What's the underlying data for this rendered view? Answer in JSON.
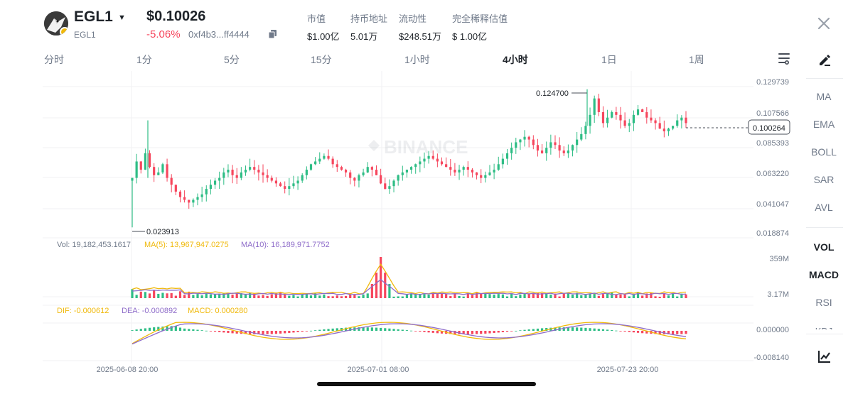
{
  "header": {
    "symbol": "EGL1",
    "symbol_sub": "EGL1",
    "price": "$0.10026",
    "change": "-5.06%",
    "address": "0xf4b3...ff4444",
    "stats": [
      {
        "label": "市值",
        "value": "$1.00亿"
      },
      {
        "label": "持币地址",
        "value": "5.01万"
      },
      {
        "label": "流动性",
        "value": "$248.51万"
      },
      {
        "label": "完全稀释估值",
        "value": "$ 1.00亿"
      }
    ]
  },
  "timeframes": [
    {
      "label": "分时"
    },
    {
      "label": "1分"
    },
    {
      "label": "5分"
    },
    {
      "label": "15分"
    },
    {
      "label": "1小时"
    },
    {
      "label": "4小时"
    },
    {
      "label": "1日"
    },
    {
      "label": "1周"
    }
  ],
  "active_timeframe": "4小时",
  "side_indicators": [
    {
      "label": "MA"
    },
    {
      "label": "EMA"
    },
    {
      "label": "BOLL"
    },
    {
      "label": "SAR"
    },
    {
      "label": "AVL"
    },
    {
      "label": "VOL"
    },
    {
      "label": "MACD"
    },
    {
      "label": "RSI"
    },
    {
      "label": "KDJ"
    }
  ],
  "watermark": "BINANCE",
  "chart_data": {
    "type": "candlestick",
    "y_ticks": [
      "0.129739",
      "0.107566",
      "0.085393",
      "0.063220",
      "0.041047",
      "0.018874"
    ],
    "y_range": [
      0.018874,
      0.129739
    ],
    "high_marker": "0.124700",
    "low_marker": "0.023913",
    "last_price": "0.100264",
    "x_ticks": [
      "2025-06-08 20:00",
      "2025-07-01 08:00",
      "2025-07-23 20:00"
    ],
    "close_series": [
      0.06,
      0.072,
      0.066,
      0.078,
      0.068,
      0.062,
      0.064,
      0.07,
      0.06,
      0.055,
      0.05,
      0.046,
      0.044,
      0.042,
      0.044,
      0.046,
      0.048,
      0.052,
      0.055,
      0.058,
      0.06,
      0.064,
      0.066,
      0.062,
      0.06,
      0.064,
      0.066,
      0.068,
      0.066,
      0.064,
      0.062,
      0.06,
      0.058,
      0.056,
      0.054,
      0.052,
      0.054,
      0.056,
      0.058,
      0.062,
      0.066,
      0.07,
      0.072,
      0.074,
      0.076,
      0.074,
      0.07,
      0.068,
      0.066,
      0.064,
      0.06,
      0.058,
      0.062,
      0.064,
      0.068,
      0.066,
      0.062,
      0.056,
      0.052,
      0.054,
      0.058,
      0.062,
      0.064,
      0.066,
      0.068,
      0.07,
      0.072,
      0.074,
      0.076,
      0.074,
      0.072,
      0.07,
      0.068,
      0.066,
      0.064,
      0.066,
      0.068,
      0.066,
      0.064,
      0.062,
      0.06,
      0.062,
      0.064,
      0.066,
      0.07,
      0.074,
      0.078,
      0.082,
      0.086,
      0.088,
      0.09,
      0.088,
      0.084,
      0.08,
      0.078,
      0.082,
      0.086,
      0.084,
      0.08,
      0.078,
      0.08,
      0.084,
      0.088,
      0.092,
      0.098,
      0.106,
      0.118,
      0.108,
      0.1,
      0.104,
      0.108,
      0.106,
      0.102,
      0.098,
      0.1,
      0.106,
      0.11,
      0.108,
      0.104,
      0.102,
      0.1,
      0.096,
      0.094,
      0.096,
      0.098,
      0.102,
      0.104,
      0.1
    ],
    "volume": {
      "label": "Vol: 19,182,453.1617",
      "ma5": "MA(5): 13,967,947.0275",
      "ma10": "MA(10): 16,189,971.7752",
      "y_ticks": [
        "359M",
        "3.17M"
      ]
    },
    "macd": {
      "dif": "DIF: -0.000612",
      "dea": "DEA: -0.000892",
      "macd": "MACD: 0.000280",
      "y_ticks": [
        "0.000000",
        "-0.008140"
      ]
    },
    "colors": {
      "up": "#2ebd85",
      "down": "#f6465d",
      "ma5": "#f0b90b",
      "ma10": "#8e6cc9"
    }
  }
}
